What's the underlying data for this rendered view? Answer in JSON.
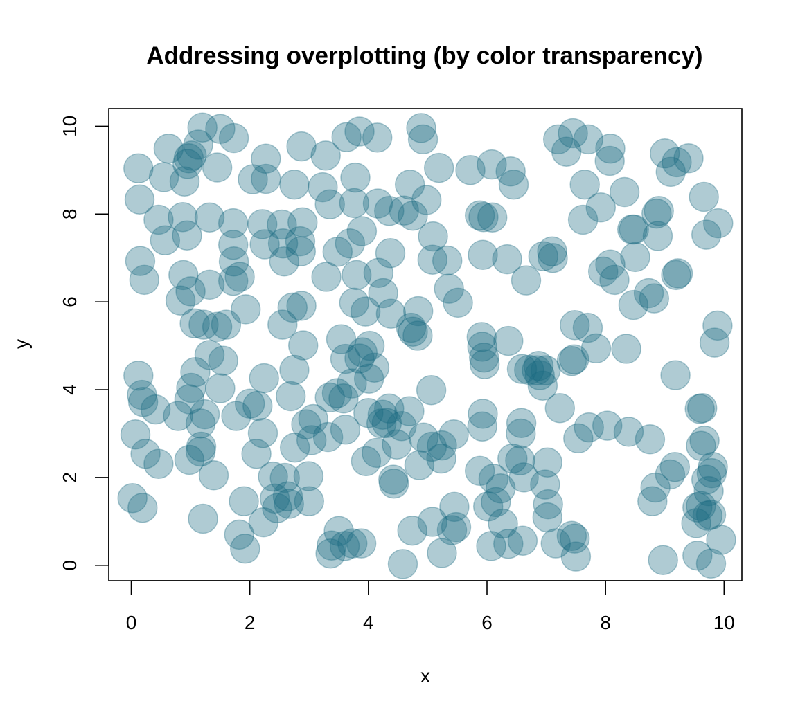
{
  "chart_data": {
    "type": "scatter",
    "title": "Addressing overplotting (by color transparency)",
    "xlabel": "x",
    "ylabel": "y",
    "xlim": [
      -0.38,
      10.3
    ],
    "ylim": [
      -0.35,
      10.4
    ],
    "xticks": [
      0,
      2,
      4,
      6,
      8,
      10
    ],
    "yticks": [
      0,
      2,
      4,
      6,
      8,
      10
    ],
    "grid": false,
    "legend": "none",
    "point_color": "#1B6A80",
    "point_opacity": 0.35,
    "point_stroke": "#1B6A80",
    "points": [
      [
        0.12,
        9.04
      ],
      [
        0.14,
        8.33
      ],
      [
        0.55,
        8.84
      ],
      [
        0.63,
        9.49
      ],
      [
        0.95,
        9.14
      ],
      [
        1.02,
        9.33
      ],
      [
        1.13,
        9.58
      ],
      [
        1.2,
        9.97
      ],
      [
        1.5,
        9.94
      ],
      [
        1.73,
        9.73
      ],
      [
        0.9,
        8.74
      ],
      [
        0.97,
        9.27
      ],
      [
        1.45,
        9.06
      ],
      [
        0.46,
        7.87
      ],
      [
        0.57,
        7.4
      ],
      [
        0.87,
        7.93
      ],
      [
        0.94,
        7.51
      ],
      [
        1.32,
        7.92
      ],
      [
        0.15,
        6.93
      ],
      [
        0.22,
        6.5
      ],
      [
        0.88,
        6.61
      ],
      [
        0.83,
        6.03
      ],
      [
        1.0,
        6.24
      ],
      [
        1.32,
        6.39
      ],
      [
        1.07,
        5.51
      ],
      [
        1.22,
        5.48
      ],
      [
        1.45,
        5.43
      ],
      [
        1.6,
        5.48
      ],
      [
        1.93,
        5.83
      ],
      [
        1.72,
        6.48
      ],
      [
        1.73,
        6.92
      ],
      [
        1.72,
        7.3
      ],
      [
        1.83,
        6.57
      ],
      [
        1.72,
        7.79
      ],
      [
        2.05,
        8.79
      ],
      [
        2.27,
        8.8
      ],
      [
        2.27,
        9.26
      ],
      [
        2.21,
        7.77
      ],
      [
        2.25,
        7.31
      ],
      [
        2.54,
        7.76
      ],
      [
        2.56,
        7.33
      ],
      [
        2.58,
        6.92
      ],
      [
        2.75,
        8.67
      ],
      [
        2.87,
        9.54
      ],
      [
        2.89,
        7.81
      ],
      [
        2.86,
        7.15
      ],
      [
        2.85,
        7.38
      ],
      [
        2.72,
        5.87
      ],
      [
        2.87,
        5.91
      ],
      [
        2.55,
        5.48
      ],
      [
        3.28,
        9.33
      ],
      [
        3.23,
        8.61
      ],
      [
        3.35,
        8.22
      ],
      [
        3.63,
        9.75
      ],
      [
        3.78,
        8.83
      ],
      [
        3.76,
        8.25
      ],
      [
        3.85,
        9.88
      ],
      [
        4.15,
        9.74
      ],
      [
        4.16,
        8.24
      ],
      [
        4.35,
        8.07
      ],
      [
        3.29,
        6.57
      ],
      [
        3.48,
        7.14
      ],
      [
        3.69,
        7.33
      ],
      [
        3.8,
        6.61
      ],
      [
        3.89,
        7.61
      ],
      [
        3.95,
        5.78
      ],
      [
        3.76,
        5.98
      ],
      [
        4.17,
        6.66
      ],
      [
        4.25,
        6.2
      ],
      [
        4.38,
        5.73
      ],
      [
        4.37,
        7.11
      ],
      [
        4.6,
        8.08
      ],
      [
        4.75,
        7.96
      ],
      [
        4.7,
        8.67
      ],
      [
        4.92,
        9.7
      ],
      [
        4.89,
        9.96
      ],
      [
        4.98,
        8.32
      ],
      [
        5.09,
        7.49
      ],
      [
        5.19,
        9.05
      ],
      [
        5.08,
        6.96
      ],
      [
        5.33,
        6.94
      ],
      [
        5.36,
        6.3
      ],
      [
        5.51,
        5.98
      ],
      [
        4.84,
        5.79
      ],
      [
        4.72,
        5.41
      ],
      [
        4.83,
        5.23
      ],
      [
        4.75,
        5.32
      ],
      [
        5.72,
        9.0
      ],
      [
        6.08,
        9.13
      ],
      [
        6.4,
        8.97
      ],
      [
        6.45,
        8.67
      ],
      [
        5.88,
        7.97
      ],
      [
        5.94,
        7.93
      ],
      [
        6.09,
        7.92
      ],
      [
        5.93,
        7.07
      ],
      [
        6.34,
        6.97
      ],
      [
        6.66,
        6.49
      ],
      [
        6.95,
        7.04
      ],
      [
        7.11,
        7.0
      ],
      [
        7.1,
        7.15
      ],
      [
        7.2,
        9.7
      ],
      [
        7.34,
        9.42
      ],
      [
        7.45,
        9.84
      ],
      [
        7.71,
        9.7
      ],
      [
        8.08,
        9.49
      ],
      [
        8.07,
        9.21
      ],
      [
        7.65,
        8.67
      ],
      [
        7.62,
        7.87
      ],
      [
        7.92,
        8.15
      ],
      [
        8.32,
        8.5
      ],
      [
        8.48,
        7.65
      ],
      [
        8.45,
        7.65
      ],
      [
        8.5,
        7.02
      ],
      [
        7.96,
        6.69
      ],
      [
        8.15,
        6.5
      ],
      [
        8.08,
        6.85
      ],
      [
        8.73,
        6.2
      ],
      [
        8.82,
        6.08
      ],
      [
        8.47,
        5.93
      ],
      [
        8.9,
        8.07
      ],
      [
        8.86,
        8.01
      ],
      [
        8.88,
        7.5
      ],
      [
        9.0,
        9.38
      ],
      [
        9.1,
        8.96
      ],
      [
        9.2,
        9.18
      ],
      [
        9.4,
        9.27
      ],
      [
        9.66,
        8.39
      ],
      [
        9.7,
        7.53
      ],
      [
        9.9,
        7.79
      ],
      [
        9.22,
        6.65
      ],
      [
        9.19,
        6.61
      ],
      [
        9.89,
        5.46
      ],
      [
        9.84,
        5.07
      ],
      [
        9.18,
        4.33
      ],
      [
        9.59,
        3.56
      ],
      [
        9.63,
        3.58
      ],
      [
        9.67,
        2.84
      ],
      [
        9.61,
        2.72
      ],
      [
        9.81,
        2.24
      ],
      [
        9.79,
        2.1
      ],
      [
        9.7,
        1.95
      ],
      [
        9.74,
        1.69
      ],
      [
        9.55,
        1.32
      ],
      [
        9.61,
        1.35
      ],
      [
        9.72,
        1.13
      ],
      [
        9.78,
        1.15
      ],
      [
        9.53,
        0.96
      ],
      [
        9.55,
        0.22
      ],
      [
        9.95,
        0.58
      ],
      [
        9.78,
        0.04
      ],
      [
        8.97,
        0.12
      ],
      [
        8.79,
        1.46
      ],
      [
        8.84,
        1.77
      ],
      [
        9.09,
        2.07
      ],
      [
        9.17,
        2.24
      ],
      [
        8.75,
        2.87
      ],
      [
        8.39,
        3.04
      ],
      [
        8.03,
        3.18
      ],
      [
        7.72,
        3.14
      ],
      [
        7.54,
        2.89
      ],
      [
        7.23,
        3.58
      ],
      [
        7.43,
        4.65
      ],
      [
        7.47,
        4.69
      ],
      [
        7.48,
        5.47
      ],
      [
        7.7,
        5.41
      ],
      [
        7.84,
        4.94
      ],
      [
        8.35,
        4.93
      ],
      [
        6.87,
        4.54
      ],
      [
        6.89,
        4.33
      ],
      [
        6.84,
        4.44
      ],
      [
        6.71,
        4.45
      ],
      [
        6.99,
        4.44
      ],
      [
        6.94,
        4.09
      ],
      [
        6.59,
        4.47
      ],
      [
        6.36,
        5.11
      ],
      [
        5.91,
        5.2
      ],
      [
        5.92,
        4.98
      ],
      [
        5.95,
        4.73
      ],
      [
        5.96,
        4.58
      ],
      [
        5.93,
        3.45
      ],
      [
        5.92,
        3.16
      ],
      [
        5.88,
        2.15
      ],
      [
        6.11,
        1.97
      ],
      [
        6.23,
        1.75
      ],
      [
        6.02,
        1.34
      ],
      [
        6.15,
        1.44
      ],
      [
        6.27,
        0.95
      ],
      [
        6.07,
        0.44
      ],
      [
        6.36,
        0.49
      ],
      [
        6.6,
        0.56
      ],
      [
        6.43,
        2.43
      ],
      [
        6.56,
        2.39
      ],
      [
        6.62,
        2.0
      ],
      [
        6.57,
        3.0
      ],
      [
        6.58,
        3.24
      ],
      [
        6.98,
        1.84
      ],
      [
        7.02,
        2.34
      ],
      [
        7.03,
        1.39
      ],
      [
        7.02,
        1.09
      ],
      [
        7.16,
        0.5
      ],
      [
        7.48,
        0.61
      ],
      [
        7.43,
        0.67
      ],
      [
        7.5,
        0.2
      ],
      [
        5.23,
        2.43
      ],
      [
        5.24,
        2.73
      ],
      [
        5.07,
        2.7
      ],
      [
        5.44,
        2.98
      ],
      [
        5.45,
        1.33
      ],
      [
        5.41,
        0.8
      ],
      [
        5.48,
        0.87
      ],
      [
        5.24,
        0.28
      ],
      [
        5.08,
        0.99
      ],
      [
        4.74,
        0.79
      ],
      [
        4.58,
        0.03
      ],
      [
        5.06,
        3.99
      ],
      [
        4.93,
        2.91
      ],
      [
        4.86,
        2.28
      ],
      [
        4.69,
        3.51
      ],
      [
        4.56,
        3.17
      ],
      [
        4.35,
        3.57
      ],
      [
        4.31,
        3.24
      ],
      [
        4.48,
        2.75
      ],
      [
        4.14,
        2.56
      ],
      [
        3.96,
        2.37
      ],
      [
        4.42,
        1.95
      ],
      [
        4.43,
        1.86
      ],
      [
        4.0,
        3.47
      ],
      [
        4.24,
        3.43
      ],
      [
        4.22,
        3.23
      ],
      [
        4.1,
        4.5
      ],
      [
        3.85,
        4.71
      ],
      [
        3.9,
        4.85
      ],
      [
        4.01,
        4.25
      ],
      [
        3.72,
        4.14
      ],
      [
        3.61,
        4.7
      ],
      [
        3.54,
        5.15
      ],
      [
        4.02,
        5.0
      ],
      [
        3.35,
        3.82
      ],
      [
        3.47,
        3.92
      ],
      [
        3.58,
        3.8
      ],
      [
        3.61,
        3.09
      ],
      [
        3.32,
        2.92
      ],
      [
        3.07,
        3.33
      ],
      [
        2.95,
        3.21
      ],
      [
        3.04,
        2.85
      ],
      [
        2.76,
        2.68
      ],
      [
        2.99,
        2.03
      ],
      [
        3.0,
        1.46
      ],
      [
        2.66,
        1.4
      ],
      [
        2.59,
        1.99
      ],
      [
        2.42,
        1.52
      ],
      [
        2.46,
        1.3
      ],
      [
        2.64,
        1.57
      ],
      [
        2.23,
        0.98
      ],
      [
        2.39,
        2.02
      ],
      [
        2.11,
        2.54
      ],
      [
        2.22,
        3.01
      ],
      [
        2.13,
        3.63
      ],
      [
        2.24,
        4.26
      ],
      [
        2.0,
        3.68
      ],
      [
        1.77,
        3.4
      ],
      [
        1.9,
        1.46
      ],
      [
        1.82,
        0.7
      ],
      [
        1.92,
        0.38
      ],
      [
        1.21,
        1.06
      ],
      [
        1.39,
        2.05
      ],
      [
        1.17,
        2.59
      ],
      [
        1.18,
        2.7
      ],
      [
        0.98,
        2.4
      ],
      [
        0.46,
        2.31
      ],
      [
        0.24,
        2.54
      ],
      [
        0.18,
        3.88
      ],
      [
        0.2,
        3.72
      ],
      [
        0.12,
        4.32
      ],
      [
        0.41,
        3.55
      ],
      [
        0.79,
        3.4
      ],
      [
        0.98,
        3.78
      ],
      [
        1.01,
        4.04
      ],
      [
        1.08,
        4.4
      ],
      [
        1.17,
        3.23
      ],
      [
        1.24,
        3.44
      ],
      [
        1.5,
        4.03
      ],
      [
        1.55,
        4.66
      ],
      [
        1.32,
        4.79
      ],
      [
        0.02,
        1.53
      ],
      [
        0.19,
        1.31
      ],
      [
        0.07,
        2.98
      ],
      [
        3.36,
        0.27
      ],
      [
        3.38,
        0.45
      ],
      [
        3.6,
        0.44
      ],
      [
        3.73,
        0.5
      ],
      [
        3.5,
        0.78
      ],
      [
        3.88,
        0.5
      ],
      [
        2.69,
        3.85
      ],
      [
        2.75,
        4.45
      ],
      [
        2.9,
        5.01
      ]
    ]
  }
}
